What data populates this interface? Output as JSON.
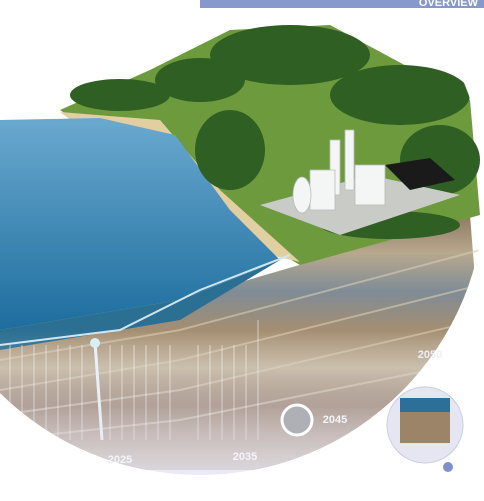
{
  "banner": "OVERVIEW",
  "timeline": {
    "labels": [
      "2025",
      "2035",
      "2045",
      "2050"
    ]
  }
}
